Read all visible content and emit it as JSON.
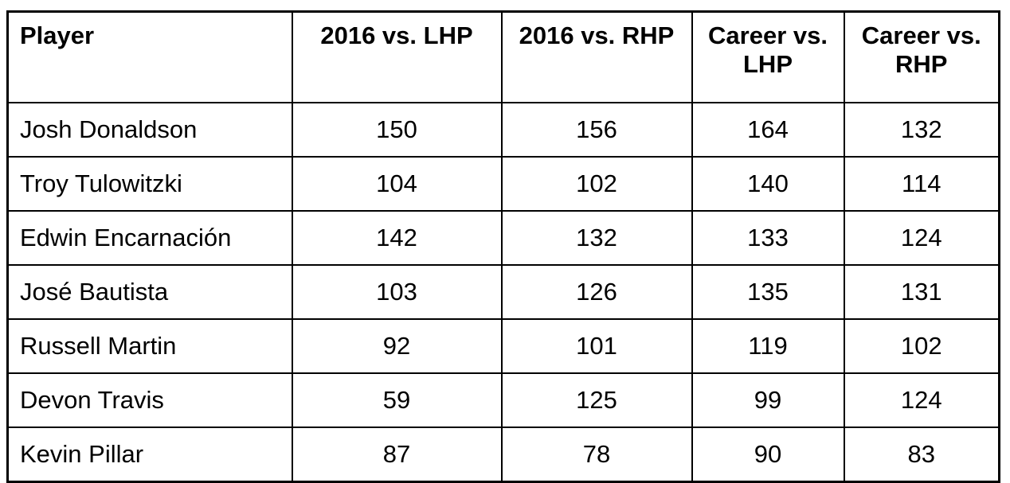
{
  "page": {
    "background_color": "#ffffff",
    "border_color": "#000000",
    "text_color": "#000000"
  },
  "table": {
    "header": [
      "Player",
      "2016 vs. LHP",
      "2016 vs. RHP",
      "Career vs. LHP",
      "Career vs. RHP"
    ],
    "rows": [
      [
        "Josh Donaldson",
        "150",
        "156",
        "164",
        "132"
      ],
      [
        "Troy Tulowitzki",
        "104",
        "102",
        "140",
        "114"
      ],
      [
        "Edwin Encarnación",
        "142",
        "132",
        "133",
        "124"
      ],
      [
        "José Bautista",
        "103",
        "126",
        "135",
        "131"
      ],
      [
        "Russell Martin",
        "92",
        "101",
        "119",
        "102"
      ],
      [
        "Devon Travis",
        "59",
        "125",
        "99",
        "124"
      ],
      [
        "Kevin Pillar",
        "87",
        "78",
        "90",
        "83"
      ]
    ]
  }
}
